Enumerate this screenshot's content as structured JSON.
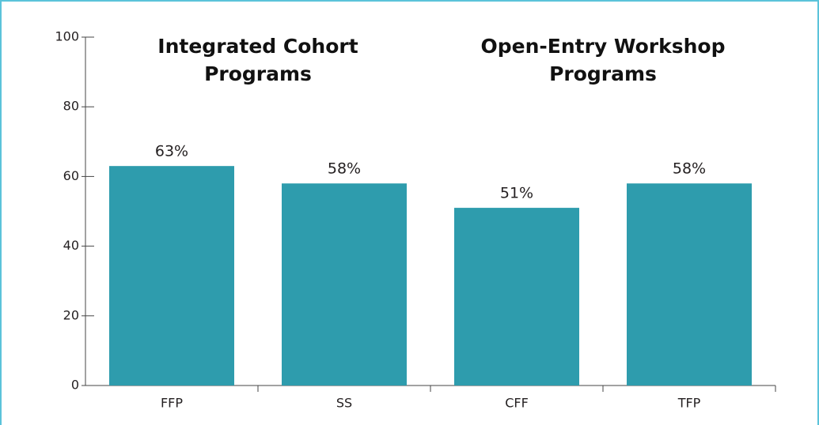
{
  "chart_data": {
    "type": "bar",
    "categories": [
      "FFP",
      "SS",
      "CFF",
      "TFP"
    ],
    "values": [
      63,
      58,
      51,
      58
    ],
    "value_labels": [
      "63%",
      "58%",
      "51%",
      "58%"
    ],
    "color": "#2e9cad",
    "ylim": [
      0,
      100
    ],
    "yticks": [
      0,
      20,
      40,
      60,
      80,
      100
    ],
    "group_labels": [
      [
        "Integrated Cohort",
        "Programs"
      ],
      [
        "Open-Entry Workshop",
        "Programs"
      ]
    ]
  }
}
